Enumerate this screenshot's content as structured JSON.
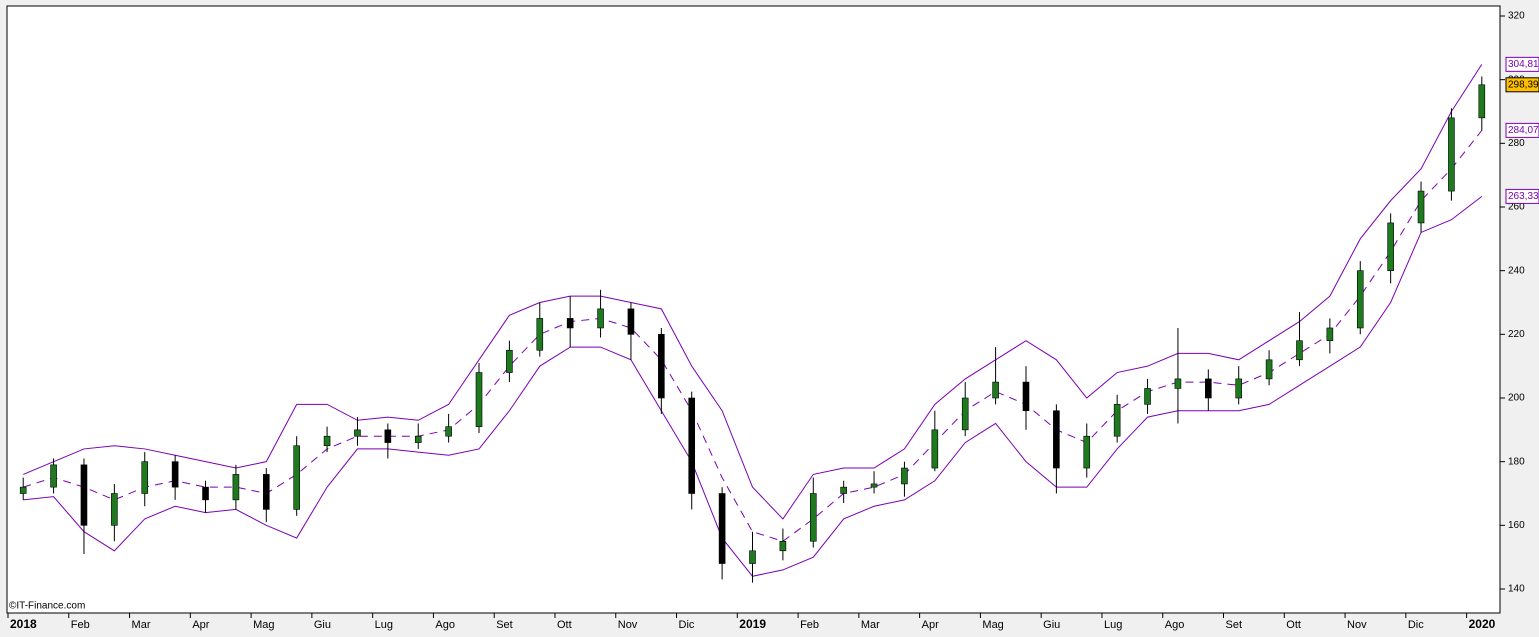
{
  "chart_data": {
    "type": "candlestick",
    "categories": [
      "2018",
      null,
      "Feb",
      null,
      "Mar",
      null,
      "Apr",
      null,
      "Mag",
      null,
      "Giu",
      null,
      "Lug",
      null,
      "Ago",
      null,
      "Set",
      null,
      "Ott",
      null,
      "Nov",
      null,
      "Dic",
      null,
      "2019",
      null,
      "Feb",
      null,
      "Mar",
      null,
      "Apr",
      null,
      "Mag",
      null,
      "Giu",
      null,
      "Lug",
      null,
      "Ago",
      null,
      "Set",
      null,
      "Ott",
      null,
      "Nov",
      null,
      "Dic",
      null,
      "2020"
    ],
    "open": [
      170,
      172,
      179,
      160,
      170,
      180,
      172,
      168,
      176,
      165,
      185,
      188,
      190,
      186,
      188,
      191,
      208,
      215,
      225,
      222,
      228,
      220,
      200,
      170,
      148,
      152,
      155,
      170,
      172,
      173,
      178,
      190,
      200,
      205,
      196,
      178,
      188,
      198,
      203,
      206,
      200,
      206,
      212,
      218,
      222,
      240,
      255,
      265,
      288
    ],
    "high": [
      175,
      181,
      181,
      173,
      183,
      182,
      174,
      179,
      178,
      188,
      191,
      194,
      192,
      192,
      195,
      211,
      218,
      230,
      232,
      234,
      230,
      222,
      202,
      172,
      158,
      159,
      175,
      174,
      177,
      180,
      196,
      205,
      216,
      210,
      198,
      192,
      201,
      206,
      222,
      209,
      210,
      215,
      227,
      225,
      243,
      258,
      268,
      291,
      301
    ],
    "low": [
      168,
      170,
      151,
      155,
      166,
      168,
      164,
      165,
      161,
      163,
      183,
      185,
      181,
      184,
      186,
      189,
      205,
      213,
      216,
      219,
      212,
      195,
      165,
      143,
      142,
      149,
      153,
      167,
      170,
      169,
      177,
      188,
      198,
      190,
      170,
      175,
      186,
      195,
      192,
      196,
      198,
      204,
      210,
      214,
      220,
      236,
      252,
      262,
      284
    ],
    "close": [
      172,
      179,
      160,
      170,
      180,
      172,
      168,
      176,
      165,
      185,
      188,
      190,
      186,
      188,
      191,
      208,
      215,
      225,
      222,
      228,
      220,
      200,
      170,
      148,
      152,
      155,
      170,
      172,
      173,
      178,
      190,
      200,
      205,
      196,
      178,
      188,
      198,
      203,
      206,
      200,
      206,
      212,
      218,
      222,
      240,
      255,
      265,
      288,
      298.39
    ],
    "up_color": "#1f7a1f",
    "down_color": "#000000",
    "bands": {
      "color": "#7a00b4",
      "upper": [
        176,
        180,
        184,
        185,
        184,
        182,
        180,
        178,
        180,
        198,
        198,
        193,
        194,
        193,
        198,
        212,
        226,
        230,
        232,
        232,
        230,
        228,
        210,
        196,
        172,
        162,
        176,
        178,
        178,
        184,
        198,
        206,
        212,
        218,
        212,
        200,
        208,
        210,
        214,
        214,
        212,
        218,
        224,
        232,
        250,
        262,
        272,
        290,
        304.81
      ],
      "middle": [
        172,
        175,
        172,
        168,
        172,
        174,
        172,
        172,
        170,
        176,
        184,
        188,
        188,
        188,
        190,
        198,
        210,
        220,
        224,
        225,
        222,
        212,
        196,
        175,
        158,
        155,
        162,
        170,
        172,
        176,
        186,
        196,
        202,
        198,
        190,
        186,
        196,
        202,
        205,
        205,
        204,
        208,
        214,
        220,
        232,
        246,
        262,
        272,
        284.07
      ],
      "lower": [
        168,
        169,
        158,
        152,
        162,
        166,
        164,
        165,
        160,
        156,
        172,
        184,
        184,
        183,
        182,
        184,
        196,
        210,
        216,
        216,
        212,
        196,
        180,
        156,
        144,
        146,
        150,
        162,
        166,
        168,
        174,
        186,
        192,
        180,
        172,
        172,
        184,
        194,
        196,
        196,
        196,
        198,
        204,
        210,
        216,
        230,
        252,
        256,
        263.33
      ]
    },
    "price_labels": [
      {
        "value": 304.81,
        "label": "304,81"
      },
      {
        "value": 298.39,
        "label": "298,39"
      },
      {
        "value": 284.07,
        "label": "284,07"
      },
      {
        "value": 263.33,
        "label": "263,33"
      }
    ],
    "ylim": [
      140,
      320
    ],
    "yticks": [
      140,
      160,
      180,
      200,
      220,
      240,
      260,
      280,
      300,
      320
    ],
    "copyright": "©IT-Finance.com"
  }
}
